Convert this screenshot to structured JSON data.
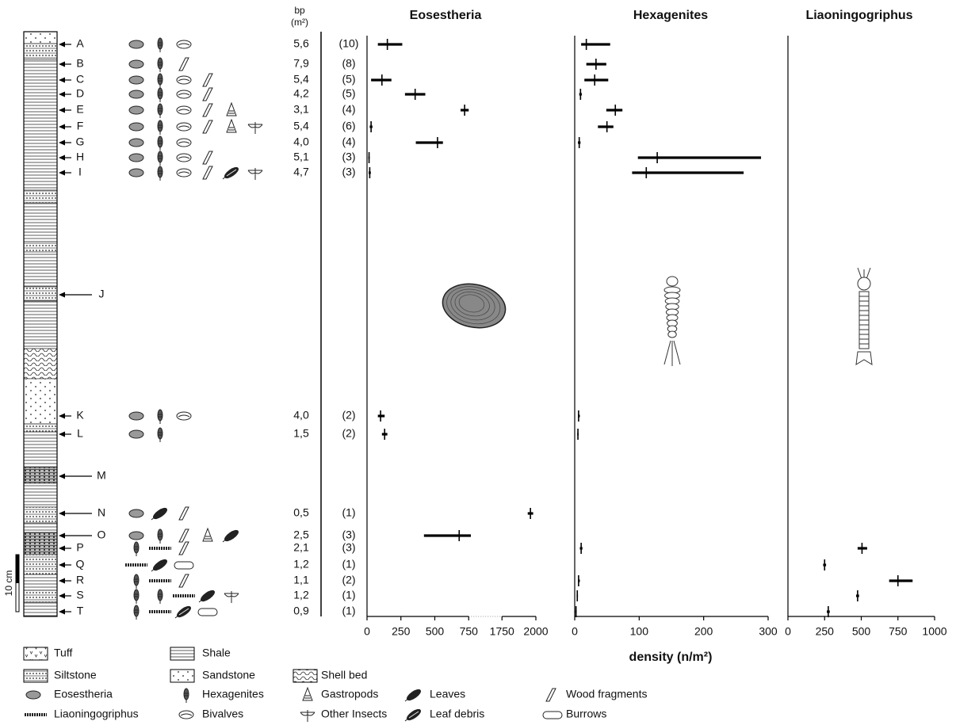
{
  "section": {
    "bp_header": [
      "bp",
      "(m²)"
    ],
    "scale_label": "10 cm",
    "levels": [
      {
        "label": "A",
        "bp": "5,6",
        "n": "(10)"
      },
      {
        "label": "B",
        "bp": "7,9",
        "n": "(8)"
      },
      {
        "label": "C",
        "bp": "5,4",
        "n": "(5)"
      },
      {
        "label": "D",
        "bp": "4,2",
        "n": "(5)"
      },
      {
        "label": "E",
        "bp": "3,1",
        "n": "(4)"
      },
      {
        "label": "F",
        "bp": "5,4",
        "n": "(6)"
      },
      {
        "label": "G",
        "bp": "4,0",
        "n": "(4)"
      },
      {
        "label": "H",
        "bp": "5,1",
        "n": "(3)"
      },
      {
        "label": "I",
        "bp": "4,7",
        "n": "(3)"
      },
      {
        "label": "J"
      },
      {
        "label": "K",
        "bp": "4,0",
        "n": "(2)"
      },
      {
        "label": "L",
        "bp": "1,5",
        "n": "(2)"
      },
      {
        "label": "M"
      },
      {
        "label": "N",
        "bp": "0,5",
        "n": "(1)"
      },
      {
        "label": "O",
        "bp": "2,5",
        "n": "(3)"
      },
      {
        "label": "P",
        "bp": "2,1",
        "n": "(3)"
      },
      {
        "label": "Q",
        "bp": "1,2",
        "n": "(1)"
      },
      {
        "label": "R",
        "bp": "1,1",
        "n": "(2)"
      },
      {
        "label": "S",
        "bp": "1,2",
        "n": "(1)"
      },
      {
        "label": "T",
        "bp": "0,9",
        "n": "(1)"
      }
    ]
  },
  "chart_data": [
    {
      "type": "errorbar",
      "title": "Eosestheria",
      "color": "#000000",
      "values": [
        150,
        null,
        110,
        355,
        720,
        30,
        520,
        15,
        20,
        null,
        100,
        130,
        null,
        1960,
        680,
        null,
        null,
        null,
        null,
        null
      ],
      "ranges": [
        [
          80,
          260
        ],
        null,
        [
          30,
          180
        ],
        [
          280,
          430
        ],
        [
          690,
          750
        ],
        [
          20,
          40
        ],
        [
          360,
          560
        ],
        [
          10,
          20
        ],
        [
          12,
          28
        ],
        null,
        [
          80,
          130
        ],
        [
          110,
          150
        ],
        null,
        [
          1940,
          1980
        ],
        [
          420,
          815
        ],
        null,
        null,
        null,
        null,
        null
      ],
      "xlim": [
        0,
        2000
      ],
      "axis_break": [
        750,
        1750
      ],
      "xticks": [
        0,
        250,
        500,
        750,
        1750,
        2000
      ]
    },
    {
      "type": "errorbar",
      "title": "Hexagenites",
      "color": "#000000",
      "xlabel": "density (n/m²)",
      "values": [
        18,
        33,
        31,
        9,
        63,
        50,
        7,
        128,
        111,
        null,
        6,
        5,
        null,
        null,
        null,
        10,
        null,
        6,
        4,
        2
      ],
      "ranges": [
        [
          10,
          55
        ],
        [
          18,
          49
        ],
        [
          15,
          52
        ],
        [
          7,
          11
        ],
        [
          49,
          74
        ],
        [
          36,
          60
        ],
        [
          5,
          9
        ],
        [
          98,
          289
        ],
        [
          89,
          262
        ],
        null,
        [
          5,
          8
        ],
        [
          4,
          6
        ],
        null,
        null,
        null,
        [
          8,
          12
        ],
        null,
        [
          5,
          8
        ],
        [
          3,
          5
        ],
        [
          1,
          3
        ]
      ],
      "xlim": [
        0,
        300
      ],
      "xticks": [
        0,
        100,
        200,
        300
      ]
    },
    {
      "type": "errorbar",
      "title": "Liaoningogriphus",
      "color": "#000000",
      "values": [
        null,
        null,
        null,
        null,
        null,
        null,
        null,
        null,
        null,
        null,
        null,
        null,
        null,
        null,
        null,
        505,
        250,
        750,
        475,
        275
      ],
      "ranges": [
        null,
        null,
        null,
        null,
        null,
        null,
        null,
        null,
        null,
        null,
        null,
        null,
        null,
        null,
        null,
        [
          475,
          540
        ],
        [
          240,
          260
        ],
        [
          690,
          850
        ],
        [
          465,
          485
        ],
        [
          265,
          285
        ]
      ],
      "xlim": [
        0,
        1000
      ],
      "xticks": [
        0,
        250,
        500,
        750,
        1000
      ]
    }
  ],
  "legend": {
    "lithology": [
      "Tuff",
      "Shale",
      "Siltstone",
      "Sandstone",
      "Shell bed"
    ],
    "fossils": [
      "Eosestheria",
      "Hexagenites",
      "Gastropods",
      "Leaves",
      "Wood fragments",
      "Liaoningogriphus",
      "Bivalves",
      "Other Insects",
      "Leaf debris",
      "Burrows"
    ]
  }
}
